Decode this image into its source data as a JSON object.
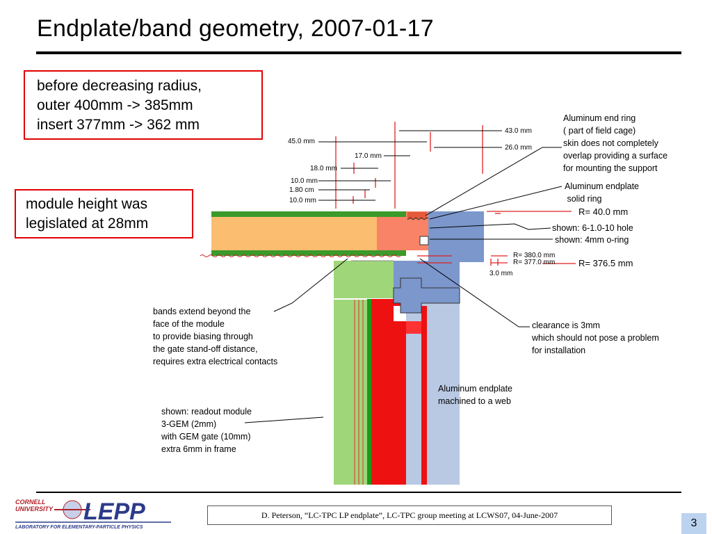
{
  "slide": {
    "title": "Endplate/band geometry,  2007-01-17",
    "page_number": "3",
    "citation": "D. Peterson, “LC-TPC LP endplate”, LC-TPC group meeting at  LCWS07, 04-June-2007"
  },
  "notes": {
    "radius_note": [
      "before decreasing radius,",
      "outer 400mm -> 385mm",
      "insert 377mm -> 362 mm"
    ],
    "module_note": [
      "module height was",
      "legislated at 28mm"
    ]
  },
  "dimensions": {
    "d45": "45.0 mm",
    "d17": "17.0 mm",
    "d18": "18.0 mm",
    "d10a": "10.0 mm",
    "d180": "1.80 cm",
    "d10b": "10.0 mm",
    "d43": "43.0 mm",
    "d26": "26.0 mm",
    "r380": "R= 380.0 mm",
    "r377": "R= 377.0 mm",
    "d3": "3.0 mm"
  },
  "callouts": {
    "end_ring": [
      "Aluminum end ring",
      "( part of field cage)",
      "skin does not completely",
      "overlap providing a surface",
      "for mounting the support"
    ],
    "endplate_ring": [
      "Aluminum endplate",
      " solid ring"
    ],
    "r40": "R= 40.0 mm",
    "hole": "shown: 6-1.0-10 hole",
    "oring": "shown: 4mm o-ring",
    "r376": "R= 376.5 mm",
    "bands": [
      "bands extend beyond the",
      "face of the module",
      "to provide biasing  through",
      "the gate stand-off distance,",
      "requires extra electrical contacts"
    ],
    "clearance": [
      "clearance is 3mm",
      "which should not pose a problem",
      "for installation"
    ],
    "web": [
      "Aluminum endplate",
      "machined to a web"
    ],
    "readout": [
      "shown: readout module",
      "3-GEM (2mm)",
      "with GEM gate (10mm)",
      "extra 6mm in frame"
    ]
  },
  "logo": {
    "line1": "CORNELL",
    "line2": "UNIVERSITY",
    "mark": "LEPP",
    "subtitle": "LABORATORY FOR ELEMENTARY-PARTICLE PHYSICS"
  }
}
